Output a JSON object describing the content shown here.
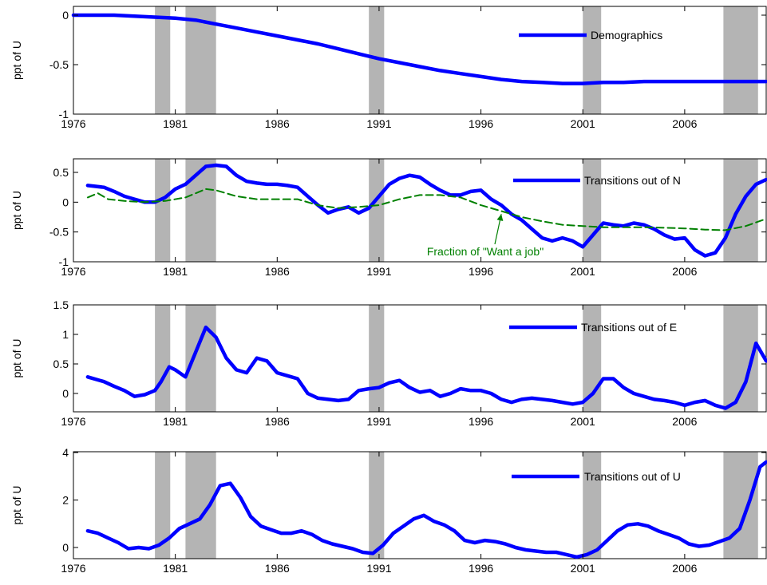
{
  "colors": {
    "main_line": "#0000ff",
    "want_job_line": "#008000",
    "recession_band": "#b4b4b4",
    "annotation": "#008000"
  },
  "recessions": [
    [
      1980.0,
      1980.75
    ],
    [
      1981.5,
      1983.0
    ],
    [
      1990.5,
      1991.25
    ],
    [
      2001.0,
      2001.9
    ],
    [
      2007.9,
      2009.6
    ]
  ],
  "chart_data": [
    {
      "type": "line",
      "ylabel": "ppt of U",
      "xlim": [
        1976,
        2010
      ],
      "ylim": [
        -1,
        0.1
      ],
      "xticks": [
        "1976",
        "1981",
        "1986",
        "1991",
        "1996",
        "2001",
        "2006"
      ],
      "yticks": [
        "0",
        "-0.5",
        "-1"
      ],
      "grid": false,
      "legend_position": "top-right",
      "series": [
        {
          "name": "Demographics",
          "x": [
            1976,
            1977,
            1978,
            1979,
            1980,
            1981,
            1982,
            1983,
            1984,
            1985,
            1986,
            1987,
            1988,
            1989,
            1990,
            1991,
            1992,
            1993,
            1994,
            1995,
            1996,
            1997,
            1998,
            1999,
            2000,
            2001,
            2002,
            2003,
            2004,
            2005,
            2006,
            2007,
            2008,
            2009,
            2010
          ],
          "values": [
            0.0,
            0.0,
            0.0,
            -0.01,
            -0.02,
            -0.03,
            -0.05,
            -0.09,
            -0.13,
            -0.17,
            -0.21,
            -0.25,
            -0.29,
            -0.34,
            -0.39,
            -0.44,
            -0.48,
            -0.52,
            -0.56,
            -0.59,
            -0.62,
            -0.65,
            -0.67,
            -0.68,
            -0.69,
            -0.69,
            -0.68,
            -0.68,
            -0.67,
            -0.67,
            -0.67,
            -0.67,
            -0.67,
            -0.67,
            -0.67
          ]
        }
      ]
    },
    {
      "type": "line",
      "ylabel": "ppt of U",
      "xlim": [
        1976,
        2010
      ],
      "ylim": [
        -1,
        0.8
      ],
      "xticks": [
        "1976",
        "1981",
        "1986",
        "1991",
        "1996",
        "2001",
        "2006"
      ],
      "yticks": [
        "0.5",
        "0",
        "-0.5",
        "-1"
      ],
      "grid": false,
      "legend_position": "top-right",
      "annotations": [
        {
          "text": "Fraction of \"Want a job\"",
          "x": 1997.0,
          "y": -0.12
        }
      ],
      "series": [
        {
          "name": "Transitions out of N",
          "x": [
            1976.7,
            1977.5,
            1978.0,
            1978.5,
            1979.0,
            1979.5,
            1980.0,
            1980.5,
            1981.0,
            1981.5,
            1982.0,
            1982.5,
            1983.0,
            1983.5,
            1984.0,
            1984.5,
            1985.0,
            1985.5,
            1986.0,
            1986.5,
            1987.0,
            1987.5,
            1988.0,
            1988.5,
            1989.0,
            1989.5,
            1990.0,
            1990.5,
            1991.0,
            1991.5,
            1992.0,
            1992.5,
            1993.0,
            1993.5,
            1994.0,
            1994.5,
            1995.0,
            1995.5,
            1996.0,
            1996.5,
            1997.0,
            1997.5,
            1998.0,
            1998.5,
            1999.0,
            1999.5,
            2000.0,
            2000.5,
            2001.0,
            2001.5,
            2002.0,
            2002.5,
            2003.0,
            2003.5,
            2004.0,
            2004.5,
            2005.0,
            2005.5,
            2006.0,
            2006.5,
            2007.0,
            2007.5,
            2008.0,
            2008.5,
            2009.0,
            2009.5,
            2010.0
          ],
          "values": [
            0.28,
            0.25,
            0.18,
            0.1,
            0.05,
            0.0,
            0.0,
            0.08,
            0.22,
            0.3,
            0.45,
            0.6,
            0.62,
            0.6,
            0.45,
            0.35,
            0.32,
            0.3,
            0.3,
            0.28,
            0.25,
            0.1,
            -0.05,
            -0.18,
            -0.12,
            -0.08,
            -0.18,
            -0.1,
            0.1,
            0.3,
            0.4,
            0.45,
            0.42,
            0.3,
            0.2,
            0.12,
            0.12,
            0.18,
            0.2,
            0.05,
            -0.05,
            -0.2,
            -0.3,
            -0.45,
            -0.6,
            -0.65,
            -0.6,
            -0.65,
            -0.75,
            -0.55,
            -0.35,
            -0.38,
            -0.4,
            -0.35,
            -0.38,
            -0.45,
            -0.55,
            -0.62,
            -0.6,
            -0.8,
            -0.9,
            -0.85,
            -0.6,
            -0.2,
            0.1,
            0.3,
            0.38
          ]
        },
        {
          "name": "",
          "x": [
            1976.7,
            1977.2,
            1977.7,
            1978.5,
            1979.5,
            1980.5,
            1981.5,
            1982.5,
            1983.0,
            1984.0,
            1985.0,
            1986.0,
            1987.0,
            1988.0,
            1989.0,
            1990.0,
            1991.0,
            1992.0,
            1993.0,
            1994.0,
            1995.0,
            1996.0,
            1997.0,
            1998.0,
            1999.0,
            2000.0,
            2001.0,
            2002.0,
            2003.0,
            2004.0,
            2005.0,
            2006.0,
            2007.0,
            2008.0,
            2009.0,
            2010.0
          ],
          "values": [
            0.08,
            0.15,
            0.05,
            0.02,
            0.0,
            0.02,
            0.08,
            0.22,
            0.2,
            0.1,
            0.05,
            0.05,
            0.05,
            -0.05,
            -0.1,
            -0.08,
            -0.05,
            0.05,
            0.12,
            0.12,
            0.08,
            -0.05,
            -0.15,
            -0.25,
            -0.32,
            -0.38,
            -0.4,
            -0.42,
            -0.42,
            -0.42,
            -0.43,
            -0.44,
            -0.46,
            -0.47,
            -0.4,
            -0.28
          ]
        }
      ]
    },
    {
      "type": "line",
      "ylabel": "ppt of U",
      "xlim": [
        1976,
        2010
      ],
      "ylim": [
        -0.3,
        1.5
      ],
      "xticks": [
        "1976",
        "1981",
        "1986",
        "1991",
        "1996",
        "2001",
        "2006"
      ],
      "yticks": [
        "1.5",
        "1",
        "0.5",
        "0"
      ],
      "grid": false,
      "legend_position": "top-right",
      "series": [
        {
          "name": "Transitions out of E",
          "x": [
            1976.7,
            1977.5,
            1978.0,
            1978.5,
            1979.0,
            1979.5,
            1980.0,
            1980.3,
            1980.7,
            1981.0,
            1981.5,
            1982.0,
            1982.5,
            1983.0,
            1983.5,
            1984.0,
            1984.5,
            1985.0,
            1985.5,
            1986.0,
            1986.5,
            1987.0,
            1987.5,
            1988.0,
            1988.5,
            1989.0,
            1989.5,
            1990.0,
            1990.5,
            1991.0,
            1991.5,
            1992.0,
            1992.5,
            1993.0,
            1993.5,
            1994.0,
            1994.5,
            1995.0,
            1995.5,
            1996.0,
            1996.5,
            1997.0,
            1997.5,
            1998.0,
            1998.5,
            1999.0,
            1999.5,
            2000.0,
            2000.5,
            2001.0,
            2001.5,
            2002.0,
            2002.5,
            2003.0,
            2003.5,
            2004.0,
            2004.5,
            2005.0,
            2005.5,
            2006.0,
            2006.5,
            2007.0,
            2007.5,
            2008.0,
            2008.5,
            2009.0,
            2009.5,
            2010.0
          ],
          "values": [
            0.28,
            0.2,
            0.12,
            0.05,
            -0.05,
            -0.02,
            0.05,
            0.2,
            0.45,
            0.4,
            0.28,
            0.7,
            1.12,
            0.95,
            0.6,
            0.4,
            0.35,
            0.6,
            0.55,
            0.35,
            0.3,
            0.25,
            0.0,
            -0.08,
            -0.1,
            -0.12,
            -0.1,
            0.05,
            0.08,
            0.1,
            0.18,
            0.22,
            0.1,
            0.02,
            0.05,
            -0.05,
            0.0,
            0.08,
            0.05,
            0.05,
            0.0,
            -0.1,
            -0.15,
            -0.1,
            -0.08,
            -0.1,
            -0.12,
            -0.15,
            -0.18,
            -0.15,
            0.0,
            0.25,
            0.25,
            0.1,
            0.0,
            -0.05,
            -0.1,
            -0.12,
            -0.15,
            -0.2,
            -0.15,
            -0.12,
            -0.2,
            -0.25,
            -0.15,
            0.2,
            0.85,
            0.55
          ]
        }
      ]
    },
    {
      "type": "line",
      "ylabel": "ppt of U",
      "xlim": [
        1976,
        2010
      ],
      "ylim": [
        -0.5,
        4
      ],
      "xticks": [
        "1976",
        "1981",
        "1986",
        "1991",
        "1996",
        "2001",
        "2006"
      ],
      "yticks": [
        "4",
        "2",
        "0"
      ],
      "grid": false,
      "legend_position": "top-right",
      "series": [
        {
          "name": "Transitions out of U",
          "x": [
            1976.7,
            1977.2,
            1977.7,
            1978.2,
            1978.7,
            1979.2,
            1979.7,
            1980.2,
            1980.7,
            1981.2,
            1981.7,
            1982.2,
            1982.7,
            1983.2,
            1983.7,
            1984.2,
            1984.7,
            1985.2,
            1985.7,
            1986.2,
            1986.7,
            1987.2,
            1987.7,
            1988.2,
            1988.7,
            1989.2,
            1989.7,
            1990.2,
            1990.7,
            1991.2,
            1991.7,
            1992.2,
            1992.7,
            1993.2,
            1993.7,
            1994.2,
            1994.7,
            1995.2,
            1995.7,
            1996.2,
            1996.7,
            1997.2,
            1997.7,
            1998.2,
            1998.7,
            1999.2,
            1999.7,
            2000.2,
            2000.7,
            2001.2,
            2001.7,
            2002.2,
            2002.7,
            2003.2,
            2003.7,
            2004.2,
            2004.7,
            2005.2,
            2005.7,
            2006.2,
            2006.7,
            2007.2,
            2007.7,
            2008.2,
            2008.7,
            2009.2,
            2009.7,
            2010.0
          ],
          "values": [
            0.7,
            0.6,
            0.4,
            0.2,
            -0.05,
            0.0,
            -0.05,
            0.1,
            0.4,
            0.8,
            1.0,
            1.2,
            1.8,
            2.6,
            2.7,
            2.1,
            1.3,
            0.9,
            0.75,
            0.6,
            0.6,
            0.7,
            0.55,
            0.3,
            0.15,
            0.05,
            -0.05,
            -0.2,
            -0.25,
            0.1,
            0.6,
            0.9,
            1.2,
            1.35,
            1.1,
            0.95,
            0.7,
            0.3,
            0.2,
            0.3,
            0.25,
            0.15,
            0.0,
            -0.1,
            -0.15,
            -0.2,
            -0.2,
            -0.3,
            -0.4,
            -0.3,
            -0.1,
            0.3,
            0.7,
            0.95,
            1.0,
            0.9,
            0.7,
            0.55,
            0.4,
            0.15,
            0.05,
            0.1,
            0.25,
            0.4,
            0.8,
            2.0,
            3.4,
            3.6
          ]
        }
      ]
    }
  ]
}
